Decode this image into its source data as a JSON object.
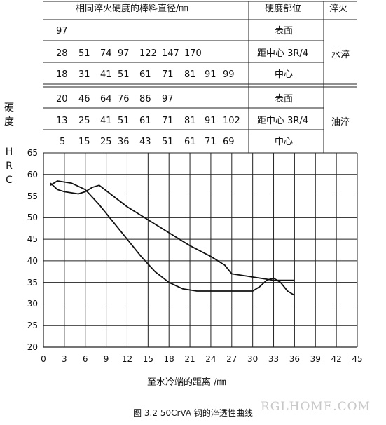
{
  "table": {
    "header": {
      "diameter": "相同淬火硬度的棒料直径/㎜",
      "position": "硬度部位",
      "quench": "淬火"
    },
    "water_group": "水淬",
    "oil_group": "油淬",
    "water_rows": [
      {
        "values": [
          "97"
        ],
        "position": "表面"
      },
      {
        "values": [
          "28",
          "51",
          "74",
          "97",
          "122",
          "147",
          "170"
        ],
        "position": "距中心 3R/4"
      },
      {
        "values": [
          "18",
          "31",
          "41",
          "51",
          "61",
          "71",
          "81",
          "91",
          "99"
        ],
        "position": "中心"
      }
    ],
    "oil_rows": [
      {
        "values": [
          "20",
          "46",
          "64",
          "76",
          "86",
          "97"
        ],
        "position": "表面"
      },
      {
        "values": [
          "13",
          "25",
          "41",
          "51",
          "61",
          "71",
          "81",
          "91",
          "102"
        ],
        "position": "距中心 3R/4"
      },
      {
        "values": [
          "5",
          "15",
          "25",
          "36",
          "43",
          "51",
          "61",
          "71",
          "69"
        ],
        "position": "中心"
      }
    ]
  },
  "y_axis_label": [
    "硬",
    "度",
    "H",
    "R",
    "C"
  ],
  "caption": "图 3.2  50CrVA 钢的淬透性曲线",
  "watermark": "RGLHOME.COM",
  "chart_data": {
    "type": "line",
    "xlabel": "至水冷端的距离 /㎜",
    "ylabel": "硬度 HRC",
    "xlim": [
      0,
      45
    ],
    "ylim": [
      20,
      65
    ],
    "x_ticks": [
      0,
      3,
      6,
      9,
      12,
      15,
      18,
      21,
      24,
      27,
      30,
      33,
      36,
      39,
      42,
      45
    ],
    "y_ticks": [
      20,
      25,
      30,
      35,
      40,
      45,
      50,
      55,
      60,
      65
    ],
    "grid": true,
    "series": [
      {
        "points": [
          [
            1,
            57.5
          ],
          [
            2,
            58.5
          ],
          [
            4,
            58
          ],
          [
            6,
            56.5
          ],
          [
            8,
            53
          ],
          [
            10,
            49
          ],
          [
            12,
            45
          ],
          [
            14,
            41
          ],
          [
            16,
            37.5
          ],
          [
            18,
            35
          ],
          [
            20,
            33.5
          ],
          [
            22,
            33
          ],
          [
            24,
            33
          ],
          [
            26,
            33
          ],
          [
            28,
            33
          ],
          [
            30,
            33
          ],
          [
            31,
            34
          ],
          [
            32,
            35.5
          ],
          [
            33,
            36
          ],
          [
            34,
            35
          ],
          [
            35,
            33
          ],
          [
            36,
            32
          ]
        ]
      },
      {
        "points": [
          [
            1,
            58
          ],
          [
            2,
            56.5
          ],
          [
            3,
            56
          ],
          [
            5,
            55.5
          ],
          [
            6,
            56
          ],
          [
            7,
            57
          ],
          [
            8,
            57.5
          ],
          [
            10,
            55
          ],
          [
            12,
            52.5
          ],
          [
            15,
            49.5
          ],
          [
            18,
            46.5
          ],
          [
            21,
            43.5
          ],
          [
            24,
            41
          ],
          [
            26,
            39
          ],
          [
            27,
            37
          ],
          [
            29,
            36.5
          ],
          [
            31,
            36
          ],
          [
            33,
            35.5
          ],
          [
            36,
            35.5
          ]
        ]
      }
    ]
  }
}
